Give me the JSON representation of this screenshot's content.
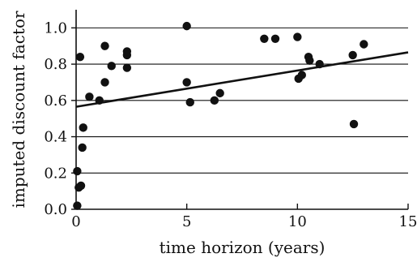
{
  "chart_data": {
    "type": "scatter",
    "title": "",
    "xlabel": "time horizon (years)",
    "ylabel": "imputed discount factor",
    "xlim": [
      0,
      15
    ],
    "ylim": [
      0,
      1.1
    ],
    "x_ticks": [
      0,
      5,
      10,
      15
    ],
    "x_tick_labels": [
      "0",
      "5",
      "10",
      "15"
    ],
    "y_ticks": [
      0.0,
      0.2,
      0.4,
      0.6,
      0.8,
      1.0
    ],
    "y_tick_labels": [
      "0.0",
      "0.2",
      "0.4",
      "0.6",
      "0.8",
      "1.0"
    ],
    "grid": "horizontal",
    "series": [
      {
        "points": [
          {
            "x": 0.05,
            "y": 0.02
          },
          {
            "x": 0.05,
            "y": 0.21
          },
          {
            "x": 0.12,
            "y": 0.12
          },
          {
            "x": 0.22,
            "y": 0.13
          },
          {
            "x": 0.18,
            "y": 0.84
          },
          {
            "x": 0.28,
            "y": 0.34
          },
          {
            "x": 0.32,
            "y": 0.45
          },
          {
            "x": 0.6,
            "y": 0.62
          },
          {
            "x": 1.05,
            "y": 0.6
          },
          {
            "x": 1.3,
            "y": 0.9
          },
          {
            "x": 1.3,
            "y": 0.7
          },
          {
            "x": 1.6,
            "y": 0.79
          },
          {
            "x": 2.3,
            "y": 0.85
          },
          {
            "x": 2.3,
            "y": 0.87
          },
          {
            "x": 2.3,
            "y": 0.78
          },
          {
            "x": 5.0,
            "y": 1.01
          },
          {
            "x": 5.0,
            "y": 0.7
          },
          {
            "x": 5.15,
            "y": 0.59
          },
          {
            "x": 6.25,
            "y": 0.6
          },
          {
            "x": 6.5,
            "y": 0.64
          },
          {
            "x": 8.5,
            "y": 0.94
          },
          {
            "x": 9.0,
            "y": 0.94
          },
          {
            "x": 10.0,
            "y": 0.95
          },
          {
            "x": 10.05,
            "y": 0.72
          },
          {
            "x": 10.2,
            "y": 0.74
          },
          {
            "x": 10.5,
            "y": 0.84
          },
          {
            "x": 10.55,
            "y": 0.82
          },
          {
            "x": 11.0,
            "y": 0.8
          },
          {
            "x": 12.5,
            "y": 0.85
          },
          {
            "x": 12.55,
            "y": 0.47
          },
          {
            "x": 13.0,
            "y": 0.91
          }
        ]
      }
    ],
    "trend_line": {
      "x": [
        0,
        15
      ],
      "y": [
        0.565,
        0.865
      ]
    }
  }
}
